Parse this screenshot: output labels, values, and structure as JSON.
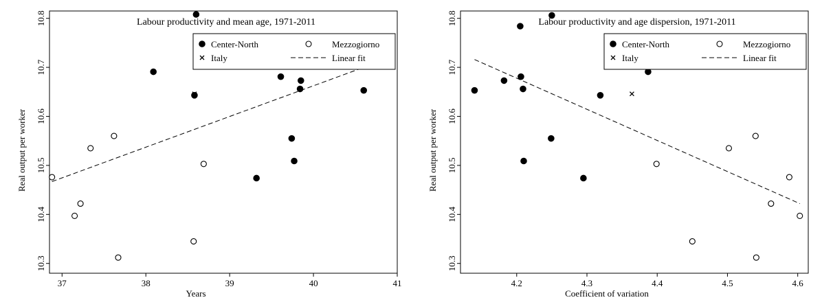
{
  "chart_data": [
    {
      "type": "scatter",
      "title": "Labour productivity and mean age, 1971-2011",
      "xlabel": "Years",
      "ylabel": "Real output per worker",
      "xlim": [
        36.85,
        41.0
      ],
      "ylim": [
        10.28,
        10.815
      ],
      "xticks": [
        37,
        38,
        39,
        40,
        41
      ],
      "yticks": [
        10.3,
        10.4,
        10.5,
        10.6,
        10.7,
        10.8
      ],
      "xtick_labels": [
        "37",
        "38",
        "39",
        "40",
        "41"
      ],
      "ytick_labels": [
        "10.3",
        "10.4",
        "10.5",
        "10.6",
        "10.7",
        "10.8"
      ],
      "legend_position": "top-right",
      "legend": [
        "Center-North",
        "Mezzogiorno",
        "Italy",
        "Linear fit"
      ],
      "series": [
        {
          "name": "Center-North",
          "marker": "filled-circle",
          "points": [
            [
              38.6,
              10.808
            ],
            [
              38.09,
              10.691
            ],
            [
              38.58,
              10.643
            ],
            [
              39.61,
              10.681
            ],
            [
              39.85,
              10.673
            ],
            [
              39.84,
              10.656
            ],
            [
              40.6,
              10.653
            ],
            [
              39.74,
              10.555
            ],
            [
              39.77,
              10.509
            ],
            [
              39.32,
              10.474
            ]
          ]
        },
        {
          "name": "Mezzogiorno",
          "marker": "hollow-circle",
          "points": [
            [
              37.62,
              10.56
            ],
            [
              37.34,
              10.535
            ],
            [
              36.88,
              10.476
            ],
            [
              38.69,
              10.503
            ],
            [
              37.22,
              10.422
            ],
            [
              37.15,
              10.397
            ],
            [
              37.67,
              10.312
            ],
            [
              38.57,
              10.345
            ]
          ]
        },
        {
          "name": "Italy",
          "marker": "cross",
          "points": [
            [
              38.58,
              10.646
            ]
          ]
        },
        {
          "name": "Linear fit",
          "type": "line",
          "points": [
            [
              36.88,
              10.467
            ],
            [
              40.6,
              10.7
            ]
          ]
        }
      ]
    },
    {
      "type": "scatter",
      "title": "Labour productivity and age dispersion, 1971-2011",
      "xlabel": "Coefficient of variation",
      "ylabel": "Real output per worker",
      "xlim": [
        4.12,
        4.615
      ],
      "ylim": [
        10.28,
        10.815
      ],
      "xticks": [
        4.1,
        4.2,
        4.3,
        4.4,
        4.5,
        4.6
      ],
      "yticks": [
        10.3,
        10.4,
        10.5,
        10.6,
        10.7,
        10.8
      ],
      "xtick_labels": [
        "4.1",
        "4.2",
        "4.3",
        "4.4",
        "4.5",
        "4.6"
      ],
      "ytick_labels": [
        "10.3",
        "10.4",
        "10.5",
        "10.6",
        "10.7",
        "10.8"
      ],
      "legend_position": "top-right",
      "legend": [
        "Center-North",
        "Mezzogiorno",
        "Italy",
        "Linear fit"
      ],
      "series": [
        {
          "name": "Center-North",
          "marker": "filled-circle",
          "points": [
            [
              4.25,
              10.806
            ],
            [
              4.205,
              10.784
            ],
            [
              4.206,
              10.681
            ],
            [
              4.387,
              10.691
            ],
            [
              4.14,
              10.653
            ],
            [
              4.182,
              10.673
            ],
            [
              4.209,
              10.656
            ],
            [
              4.319,
              10.643
            ],
            [
              4.249,
              10.555
            ],
            [
              4.21,
              10.509
            ],
            [
              4.295,
              10.474
            ]
          ]
        },
        {
          "name": "Mezzogiorno",
          "marker": "hollow-circle",
          "points": [
            [
              4.399,
              10.503
            ],
            [
              4.502,
              10.535
            ],
            [
              4.54,
              10.56
            ],
            [
              4.588,
              10.476
            ],
            [
              4.562,
              10.422
            ],
            [
              4.603,
              10.397
            ],
            [
              4.45,
              10.345
            ],
            [
              4.541,
              10.312
            ]
          ]
        },
        {
          "name": "Italy",
          "marker": "cross",
          "points": [
            [
              4.364,
              10.646
            ]
          ]
        },
        {
          "name": "Linear fit",
          "type": "line",
          "points": [
            [
              4.14,
              10.716
            ],
            [
              4.603,
              10.422
            ]
          ]
        }
      ]
    }
  ]
}
